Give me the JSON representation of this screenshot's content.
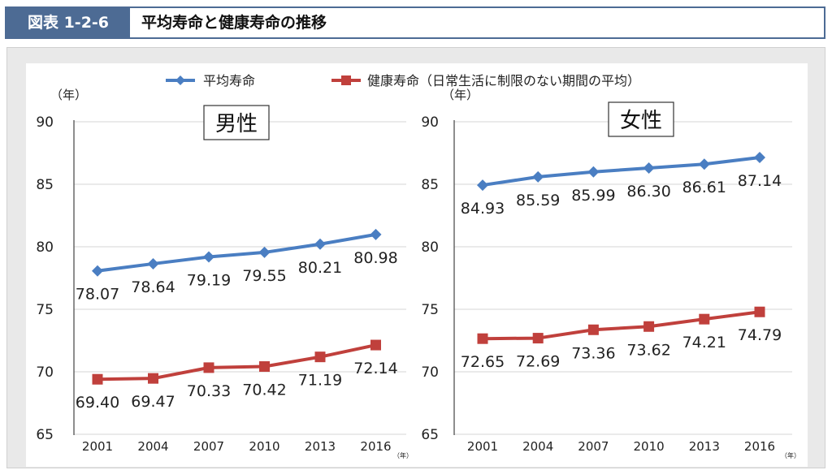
{
  "header": {
    "figure_label": "図表 1-2-6",
    "title": "平均寿命と健康寿命の推移"
  },
  "colors": {
    "series_1": "#4a7ec2",
    "series_2": "#c0403c",
    "header_accent": "#4d6b94"
  },
  "chart_data": [
    {
      "type": "line",
      "title": "男性",
      "y_unit": "（年）",
      "x_unit": "（年）",
      "x": [
        "2001",
        "2004",
        "2007",
        "2010",
        "2013",
        "2016"
      ],
      "ylim": [
        65,
        90
      ],
      "yticks": [
        65,
        70,
        75,
        80,
        85,
        90
      ],
      "grid": true,
      "series": [
        {
          "name": "平均寿命",
          "values": [
            78.07,
            78.64,
            79.19,
            79.55,
            80.21,
            80.98
          ],
          "labels": [
            "78.07",
            "78.64",
            "79.19",
            "79.55",
            "80.21",
            "80.98"
          ]
        },
        {
          "name": "健康寿命（日常生活に制限のない期間の平均）",
          "values": [
            69.4,
            69.47,
            70.33,
            70.42,
            71.19,
            72.14
          ],
          "labels": [
            "69.40",
            "69.47",
            "70.33",
            "70.42",
            "71.19",
            "72.14"
          ]
        }
      ]
    },
    {
      "type": "line",
      "title": "女性",
      "y_unit": "（年）",
      "x_unit": "（年）",
      "x": [
        "2001",
        "2004",
        "2007",
        "2010",
        "2013",
        "2016"
      ],
      "ylim": [
        65,
        90
      ],
      "yticks": [
        65,
        70,
        75,
        80,
        85,
        90
      ],
      "grid": true,
      "series": [
        {
          "name": "平均寿命",
          "values": [
            84.93,
            85.59,
            85.99,
            86.3,
            86.61,
            87.14
          ],
          "labels": [
            "84.93",
            "85.59",
            "85.99",
            "86.30",
            "86.61",
            "87.14"
          ]
        },
        {
          "name": "健康寿命（日常生活に制限のない期間の平均）",
          "values": [
            72.65,
            72.69,
            73.36,
            73.62,
            74.21,
            74.79
          ],
          "labels": [
            "72.65",
            "72.69",
            "73.36",
            "73.62",
            "74.21",
            "74.79"
          ]
        }
      ]
    }
  ]
}
